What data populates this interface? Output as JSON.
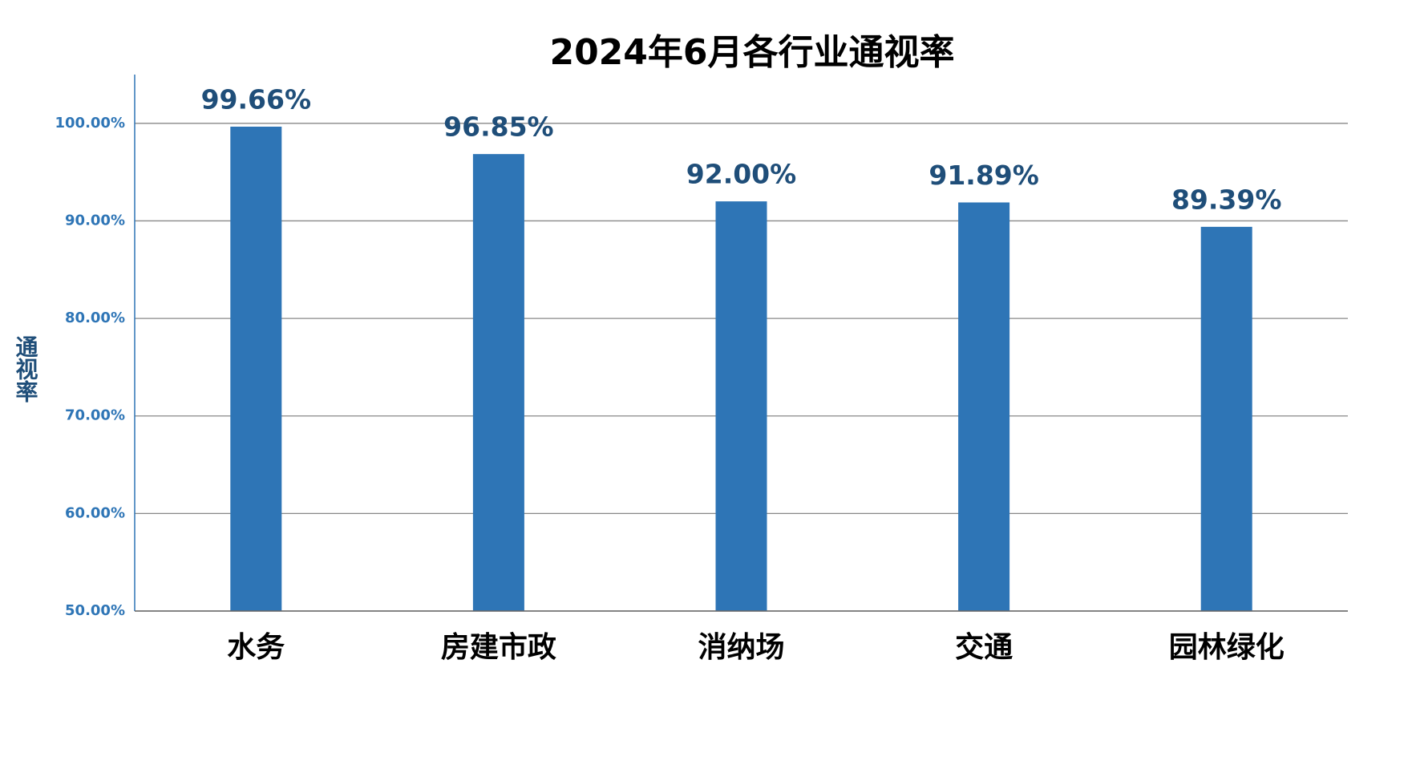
{
  "chart_data": {
    "type": "bar",
    "title": "2024年6月各行业通视率",
    "y_label": "通视率",
    "categories": [
      "水务",
      "房建市政",
      "消纳场",
      "交通",
      "园林绿化"
    ],
    "values": [
      99.66,
      96.85,
      92.0,
      91.89,
      89.39
    ],
    "value_labels": [
      "99.66%",
      "96.85%",
      "92.00%",
      "91.89%",
      "89.39%"
    ],
    "color": "#2e75b6",
    "ylim": [
      50,
      105
    ],
    "yticks": [
      {
        "value": 50,
        "label": "50.00%"
      },
      {
        "value": 60,
        "label": "60.00%"
      },
      {
        "value": 70,
        "label": "70.00%"
      },
      {
        "value": 80,
        "label": "80.00%"
      },
      {
        "value": 90,
        "label": "90.00%"
      },
      {
        "value": 100,
        "label": "100.00%"
      }
    ],
    "grid": true
  }
}
